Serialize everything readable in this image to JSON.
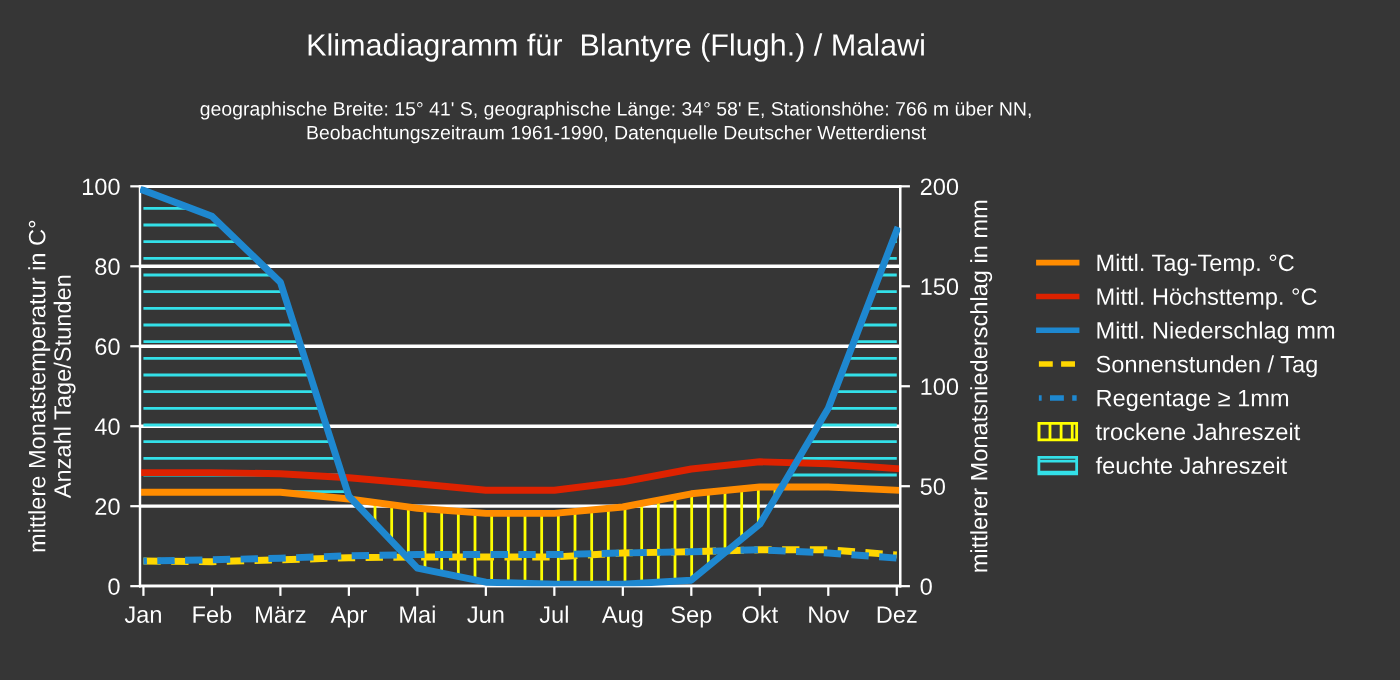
{
  "chart_data": {
    "type": "line",
    "title": "Klimadiagramm für  Blantyre (Flugh.) / Malawi",
    "subtitle": "geographische Breite: 15° 41' S, geographische Länge: 34° 58' E, Stationshöhe: 766 m über NN,\nBeobachtungszeitraum 1961-1990, Datenquelle Deutscher Wetterdienst",
    "ylabel": "mittlere Monatstemperatur in C°\nAnzahl Tage/Stunden",
    "y2label": "mittlerer Monatsniederschlag in mm",
    "categories": [
      "Jan",
      "Feb",
      "März",
      "Apr",
      "Mai",
      "Jun",
      "Jul",
      "Aug",
      "Sep",
      "Okt",
      "Nov",
      "Dez"
    ],
    "series": [
      {
        "name": "Mittl. Tag-Temp. °C",
        "color": "#ff8c00",
        "line_style": "solid",
        "values": [
          23.5,
          23.5,
          23.5,
          21.8,
          19.5,
          18.2,
          18.2,
          19.8,
          23.1,
          24.8,
          24.8,
          24.0
        ]
      },
      {
        "name": "Mittl. Höchsttemp. °C",
        "color": "#dd2200",
        "line_style": "solid",
        "values": [
          28.4,
          28.4,
          28.1,
          27.1,
          25.6,
          24.0,
          24.0,
          26.1,
          29.3,
          31.1,
          30.6,
          29.4
        ]
      },
      {
        "name": "Mittl. Niederschlag mm",
        "color": "#1e88d0",
        "line_style": "solid",
        "axis": "y2",
        "values": [
          198,
          185,
          152,
          45,
          9,
          2,
          1,
          1,
          3,
          31,
          89,
          178
        ]
      },
      {
        "name": "Sonnenstunden / Tag",
        "color": "#ffd700",
        "line_style": "dashed",
        "values": [
          6.3,
          6.1,
          6.6,
          7.1,
          7.3,
          7.3,
          7.3,
          8.3,
          8.6,
          9.1,
          9.1,
          7.8
        ]
      },
      {
        "name": "Regentage ≥ 1mm",
        "color": "#1e88d0",
        "line_style": "dashed",
        "values": [
          6.3,
          6.6,
          7.0,
          7.6,
          7.9,
          7.9,
          7.9,
          8.3,
          8.6,
          9.1,
          8.3,
          7.0
        ]
      }
    ],
    "annotations": [
      "trockene Jahreszeit",
      "feuchte Jahreszeit"
    ],
    "ylim": [
      0,
      100
    ],
    "yticks": [
      0,
      20,
      40,
      60,
      80,
      100
    ],
    "y2lim": [
      0,
      200
    ],
    "y2ticks": [
      0,
      50,
      100,
      150,
      200
    ],
    "grid": "y",
    "legend": "right",
    "marker": "none"
  }
}
